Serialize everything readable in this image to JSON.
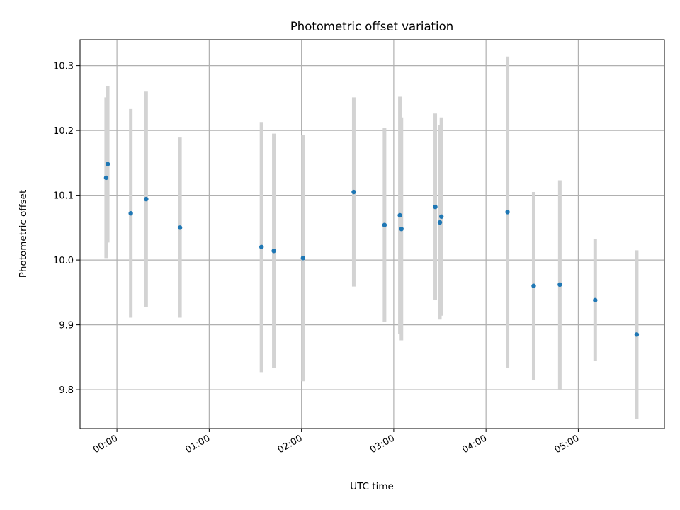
{
  "chart_data": {
    "type": "scatter",
    "title": "Photometric offset variation",
    "xlabel": "UTC time",
    "ylabel": "Photometric offset",
    "x_unit": "UTC time",
    "xlim": [
      "23:36",
      "05:56"
    ],
    "ylim": [
      9.74,
      10.34
    ],
    "grid": true,
    "x_ticks": [
      "00:00",
      "01:00",
      "02:00",
      "03:00",
      "04:00",
      "05:00"
    ],
    "y_ticks": [
      "9.8",
      "9.9",
      "10.0",
      "10.1",
      "10.2",
      "10.3"
    ],
    "y_tick_values": [
      9.8,
      9.9,
      10.0,
      10.1,
      10.2,
      10.3
    ],
    "colors": {
      "marker": "#1f77b4",
      "errorbar": "#d3d3d3",
      "grid": "#b0b0b0"
    },
    "points": [
      {
        "t": "23:53",
        "y": 10.127,
        "err": 0.124
      },
      {
        "t": "23:54",
        "y": 10.148,
        "err": 0.121
      },
      {
        "t": "00:09",
        "y": 10.072,
        "err": 0.161
      },
      {
        "t": "00:19",
        "y": 10.094,
        "err": 0.166
      },
      {
        "t": "00:41",
        "y": 10.05,
        "err": 0.139
      },
      {
        "t": "01:34",
        "y": 10.02,
        "err": 0.193
      },
      {
        "t": "01:42",
        "y": 10.014,
        "err": 0.181
      },
      {
        "t": "02:01",
        "y": 10.003,
        "err": 0.19
      },
      {
        "t": "02:34",
        "y": 10.105,
        "err": 0.146
      },
      {
        "t": "02:54",
        "y": 10.054,
        "err": 0.15
      },
      {
        "t": "03:04",
        "y": 10.069,
        "err": 0.183
      },
      {
        "t": "03:05",
        "y": 10.048,
        "err": 0.172
      },
      {
        "t": "03:27",
        "y": 10.082,
        "err": 0.144
      },
      {
        "t": "03:30",
        "y": 10.058,
        "err": 0.15
      },
      {
        "t": "03:31",
        "y": 10.067,
        "err": 0.153
      },
      {
        "t": "04:14",
        "y": 10.074,
        "err": 0.24
      },
      {
        "t": "04:31",
        "y": 9.96,
        "err": 0.145
      },
      {
        "t": "04:48",
        "y": 9.962,
        "err": 0.161
      },
      {
        "t": "05:11",
        "y": 9.938,
        "err": 0.094
      },
      {
        "t": "05:38",
        "y": 9.885,
        "err": 0.13
      }
    ]
  }
}
